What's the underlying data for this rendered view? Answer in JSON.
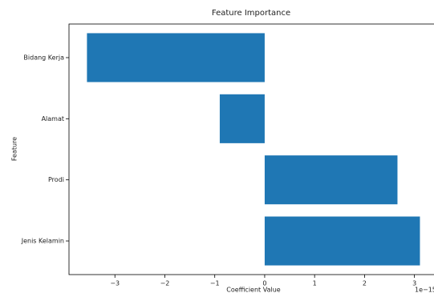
{
  "chart_data": {
    "type": "barh",
    "title": "Feature Importance",
    "x_label": "Coefficient Value",
    "y_label": "Feature",
    "offset_text": "1e−15",
    "categories": [
      "Jenis Kelamin",
      "Prodi",
      "Alamat",
      "Bidang Kerja"
    ],
    "values": [
      3.11,
      2.66,
      -0.9,
      -3.56
    ],
    "color": "#1f77b4",
    "xlim": [
      -3.92,
      3.44
    ],
    "xticks": [
      {
        "value": -3,
        "label": "−3"
      },
      {
        "value": -2,
        "label": "−2"
      },
      {
        "value": -1,
        "label": "−1"
      },
      0,
      1,
      2,
      3
    ]
  }
}
